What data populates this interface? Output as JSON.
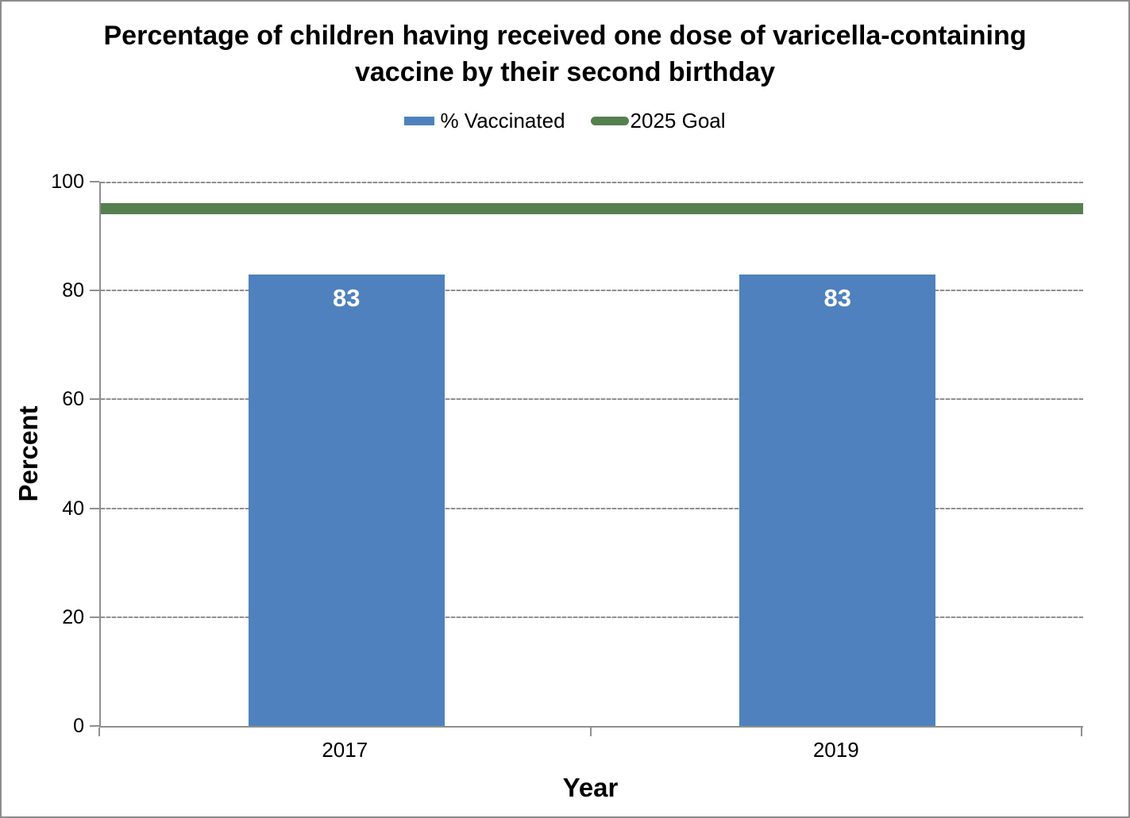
{
  "chart_data": {
    "type": "bar",
    "title": "Percentage of children having received one dose of varicella-containing vaccine by their second birthday",
    "categories": [
      "2017",
      "2019"
    ],
    "series": [
      {
        "name": "% Vaccinated",
        "values": [
          83,
          83
        ],
        "color": "#4E81BD"
      }
    ],
    "goal_line": {
      "name": "2025 Goal",
      "value": 95,
      "color": "#55804E"
    },
    "xlabel": "Year",
    "ylabel": "Percent",
    "ylim": [
      0,
      100
    ],
    "yticks": [
      0,
      20,
      40,
      60,
      80,
      100
    ],
    "data_labels": {
      "show": true,
      "color": "#FFFFFF"
    },
    "legend_position": "top",
    "grid": "horizontal-dashed",
    "colors": {
      "axis": "#8F8F8F",
      "grid": "#8F8F8F",
      "frame_border": "#8C8C8C",
      "background": "#FFFFFF",
      "text": "#000000"
    }
  }
}
